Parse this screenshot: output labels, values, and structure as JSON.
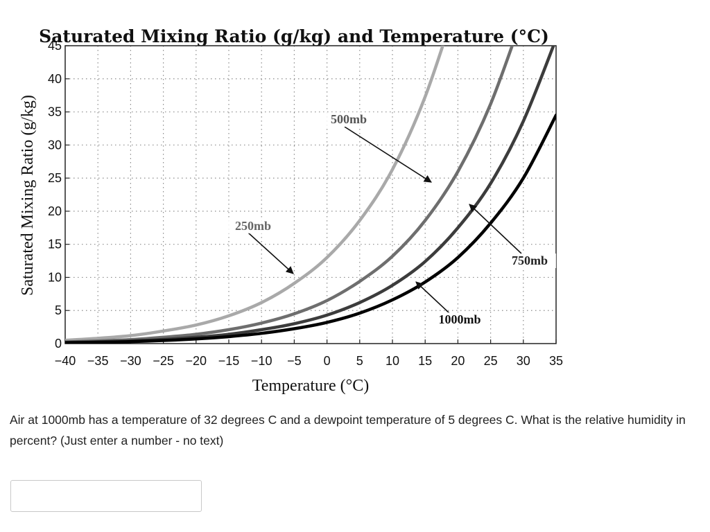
{
  "chart_data": {
    "type": "line",
    "title": "Saturated Mixing Ratio (g/kg) and Temperature (°C)",
    "xlabel": "Temperature (°C)",
    "ylabel": "Saturated Mixing Ratio (g/kg)",
    "xlim": [
      -40,
      35
    ],
    "ylim": [
      0,
      45
    ],
    "x_ticks": [
      "−40",
      "−35",
      "−30",
      "−25",
      "−20",
      "−15",
      "−10",
      "−5",
      "0",
      "5",
      "10",
      "15",
      "20",
      "25",
      "30",
      "35"
    ],
    "y_ticks": [
      "0",
      "5",
      "10",
      "15",
      "20",
      "25",
      "30",
      "35",
      "40",
      "45"
    ],
    "grid": true,
    "grid_style": "dotted",
    "x": [
      -40,
      -35,
      -30,
      -25,
      -20,
      -15,
      -10,
      -5,
      0,
      5,
      10,
      15,
      20,
      25,
      30,
      35
    ],
    "series": [
      {
        "name": "250mb",
        "color": "#a9a9a9",
        "values": [
          0.5,
          0.8,
          1.2,
          1.9,
          2.8,
          4.2,
          6.2,
          9.1,
          13.0,
          18.6,
          26.3,
          37.3,
          52.0,
          null,
          null,
          null
        ]
      },
      {
        "name": "500mb",
        "color": "#6e6e6e",
        "values": [
          0.25,
          0.4,
          0.6,
          0.95,
          1.4,
          2.1,
          3.1,
          4.5,
          6.5,
          9.4,
          13.2,
          18.6,
          26.0,
          36.2,
          49.8,
          null
        ]
      },
      {
        "name": "750mb",
        "color": "#3c3c3c",
        "values": [
          0.17,
          0.27,
          0.4,
          0.63,
          0.95,
          1.4,
          2.1,
          3.0,
          4.3,
          6.2,
          8.8,
          12.4,
          17.5,
          24.2,
          33.6,
          46.0
        ]
      },
      {
        "name": "1000mb",
        "color": "#000000",
        "values": [
          0.13,
          0.2,
          0.3,
          0.47,
          0.7,
          1.05,
          1.55,
          2.25,
          3.2,
          4.6,
          6.6,
          9.3,
          13.0,
          18.2,
          25.0,
          34.5
        ]
      }
    ],
    "annotations": [
      {
        "text": "250mb"
      },
      {
        "text": "500mb"
      },
      {
        "text": "750mb"
      },
      {
        "text": "1000mb"
      }
    ]
  },
  "question": {
    "text": "Air at 1000mb has a temperature of 32 degrees C and a dewpoint temperature of 5 degrees C. What is the relative humidity in percent? (Just enter a number - no text)"
  },
  "answer": {
    "value": ""
  }
}
